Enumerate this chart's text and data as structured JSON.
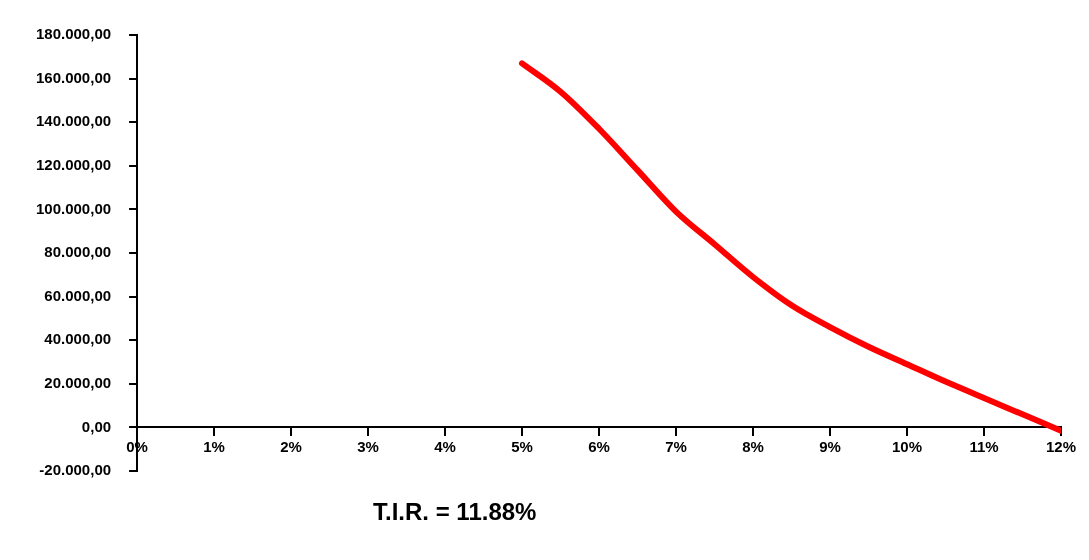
{
  "chart_data": {
    "type": "line",
    "xlabel": "T.I.R. = 11.88%",
    "x": [
      5,
      5.5,
      6,
      6.5,
      7,
      7.5,
      8,
      8.5,
      9,
      9.5,
      10,
      10.5,
      11,
      11.5,
      12
    ],
    "series": [
      {
        "color": "#ff0000",
        "values": [
          167000,
          154000,
          137000,
          118000,
          99000,
          84000,
          69000,
          56000,
          46000,
          37000,
          29000,
          21000,
          13500,
          6000,
          -1500
        ]
      }
    ],
    "xlim": [
      0,
      12
    ],
    "xticks": [
      {
        "value": 0,
        "label": "0%"
      },
      {
        "value": 1,
        "label": "1%"
      },
      {
        "value": 2,
        "label": "2%"
      },
      {
        "value": 3,
        "label": "3%"
      },
      {
        "value": 4,
        "label": "4%"
      },
      {
        "value": 5,
        "label": "5%"
      },
      {
        "value": 6,
        "label": "6%"
      },
      {
        "value": 7,
        "label": "7%"
      },
      {
        "value": 8,
        "label": "8%"
      },
      {
        "value": 9,
        "label": "9%"
      },
      {
        "value": 10,
        "label": "10%"
      },
      {
        "value": 11,
        "label": "11%"
      },
      {
        "value": 12,
        "label": "12%"
      }
    ],
    "ylim": [
      -20000,
      180000
    ],
    "yticks": [
      {
        "value": -20000,
        "label": "-20.000,00"
      },
      {
        "value": 0,
        "label": "0,00"
      },
      {
        "value": 20000,
        "label": "20.000,00"
      },
      {
        "value": 40000,
        "label": "40.000,00"
      },
      {
        "value": 60000,
        "label": "60.000,00"
      },
      {
        "value": 80000,
        "label": "80.000,00"
      },
      {
        "value": 100000,
        "label": "100.000,00"
      },
      {
        "value": 120000,
        "label": "120.000,00"
      },
      {
        "value": 140000,
        "label": "140.000,00"
      },
      {
        "value": 160000,
        "label": "160.000,00"
      },
      {
        "value": 180000,
        "label": "180.000,00"
      }
    ],
    "grid": false,
    "legend": false,
    "marker": "none",
    "line_style": "solid"
  }
}
